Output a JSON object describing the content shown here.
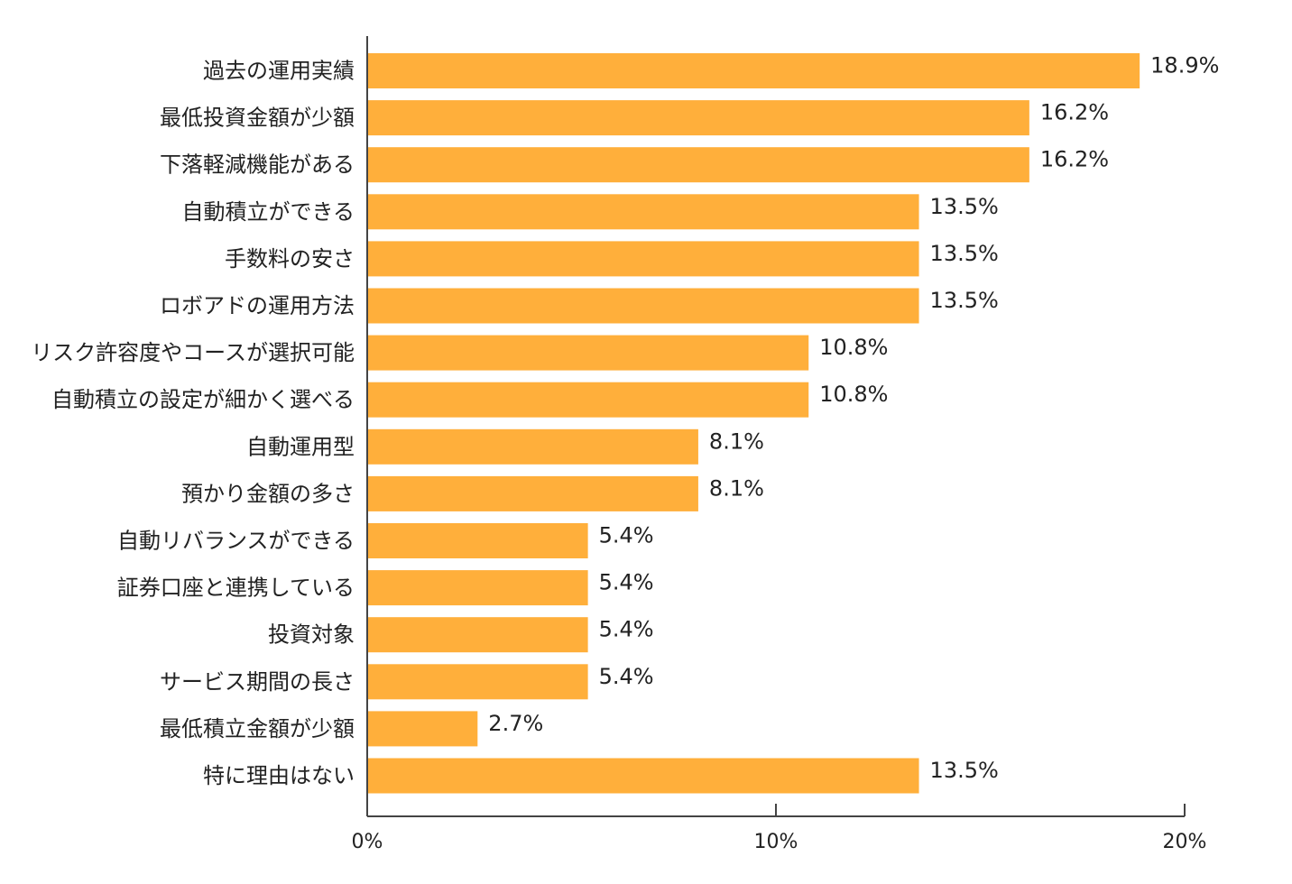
{
  "chart_data": {
    "type": "bar",
    "orientation": "horizontal",
    "bar_color": "#FFAF3B",
    "categories": [
      "過去の運用実績",
      "最低投資金額が少額",
      "下落軽減機能がある",
      "自動積立ができる",
      "手数料の安さ",
      "ロボアドの運用方法",
      "リスク許容度やコースが選択可能",
      "自動積立の設定が細かく選べる",
      "自動運用型",
      "預かり金額の多さ",
      "自動リバランスができる",
      "証券口座と連携している",
      "投資対象",
      "サービス期間の長さ",
      "最低積立金額が少額",
      "特に理由はない"
    ],
    "values": [
      18.9,
      16.2,
      16.2,
      13.5,
      13.5,
      13.5,
      10.8,
      10.8,
      8.1,
      8.1,
      5.4,
      5.4,
      5.4,
      5.4,
      2.7,
      13.5
    ],
    "value_labels": [
      "18.9%",
      "16.2%",
      "16.2%",
      "13.5%",
      "13.5%",
      "13.5%",
      "10.8%",
      "10.8%",
      "8.1%",
      "8.1%",
      "5.4%",
      "5.4%",
      "5.4%",
      "5.4%",
      "2.7%",
      "13.5%"
    ],
    "xlim": [
      0,
      20
    ],
    "xticks": [
      {
        "value": 0,
        "label": "0%"
      },
      {
        "value": 10,
        "label": "10%"
      },
      {
        "value": 20,
        "label": "20%"
      }
    ],
    "grid": false,
    "legend": "none"
  }
}
